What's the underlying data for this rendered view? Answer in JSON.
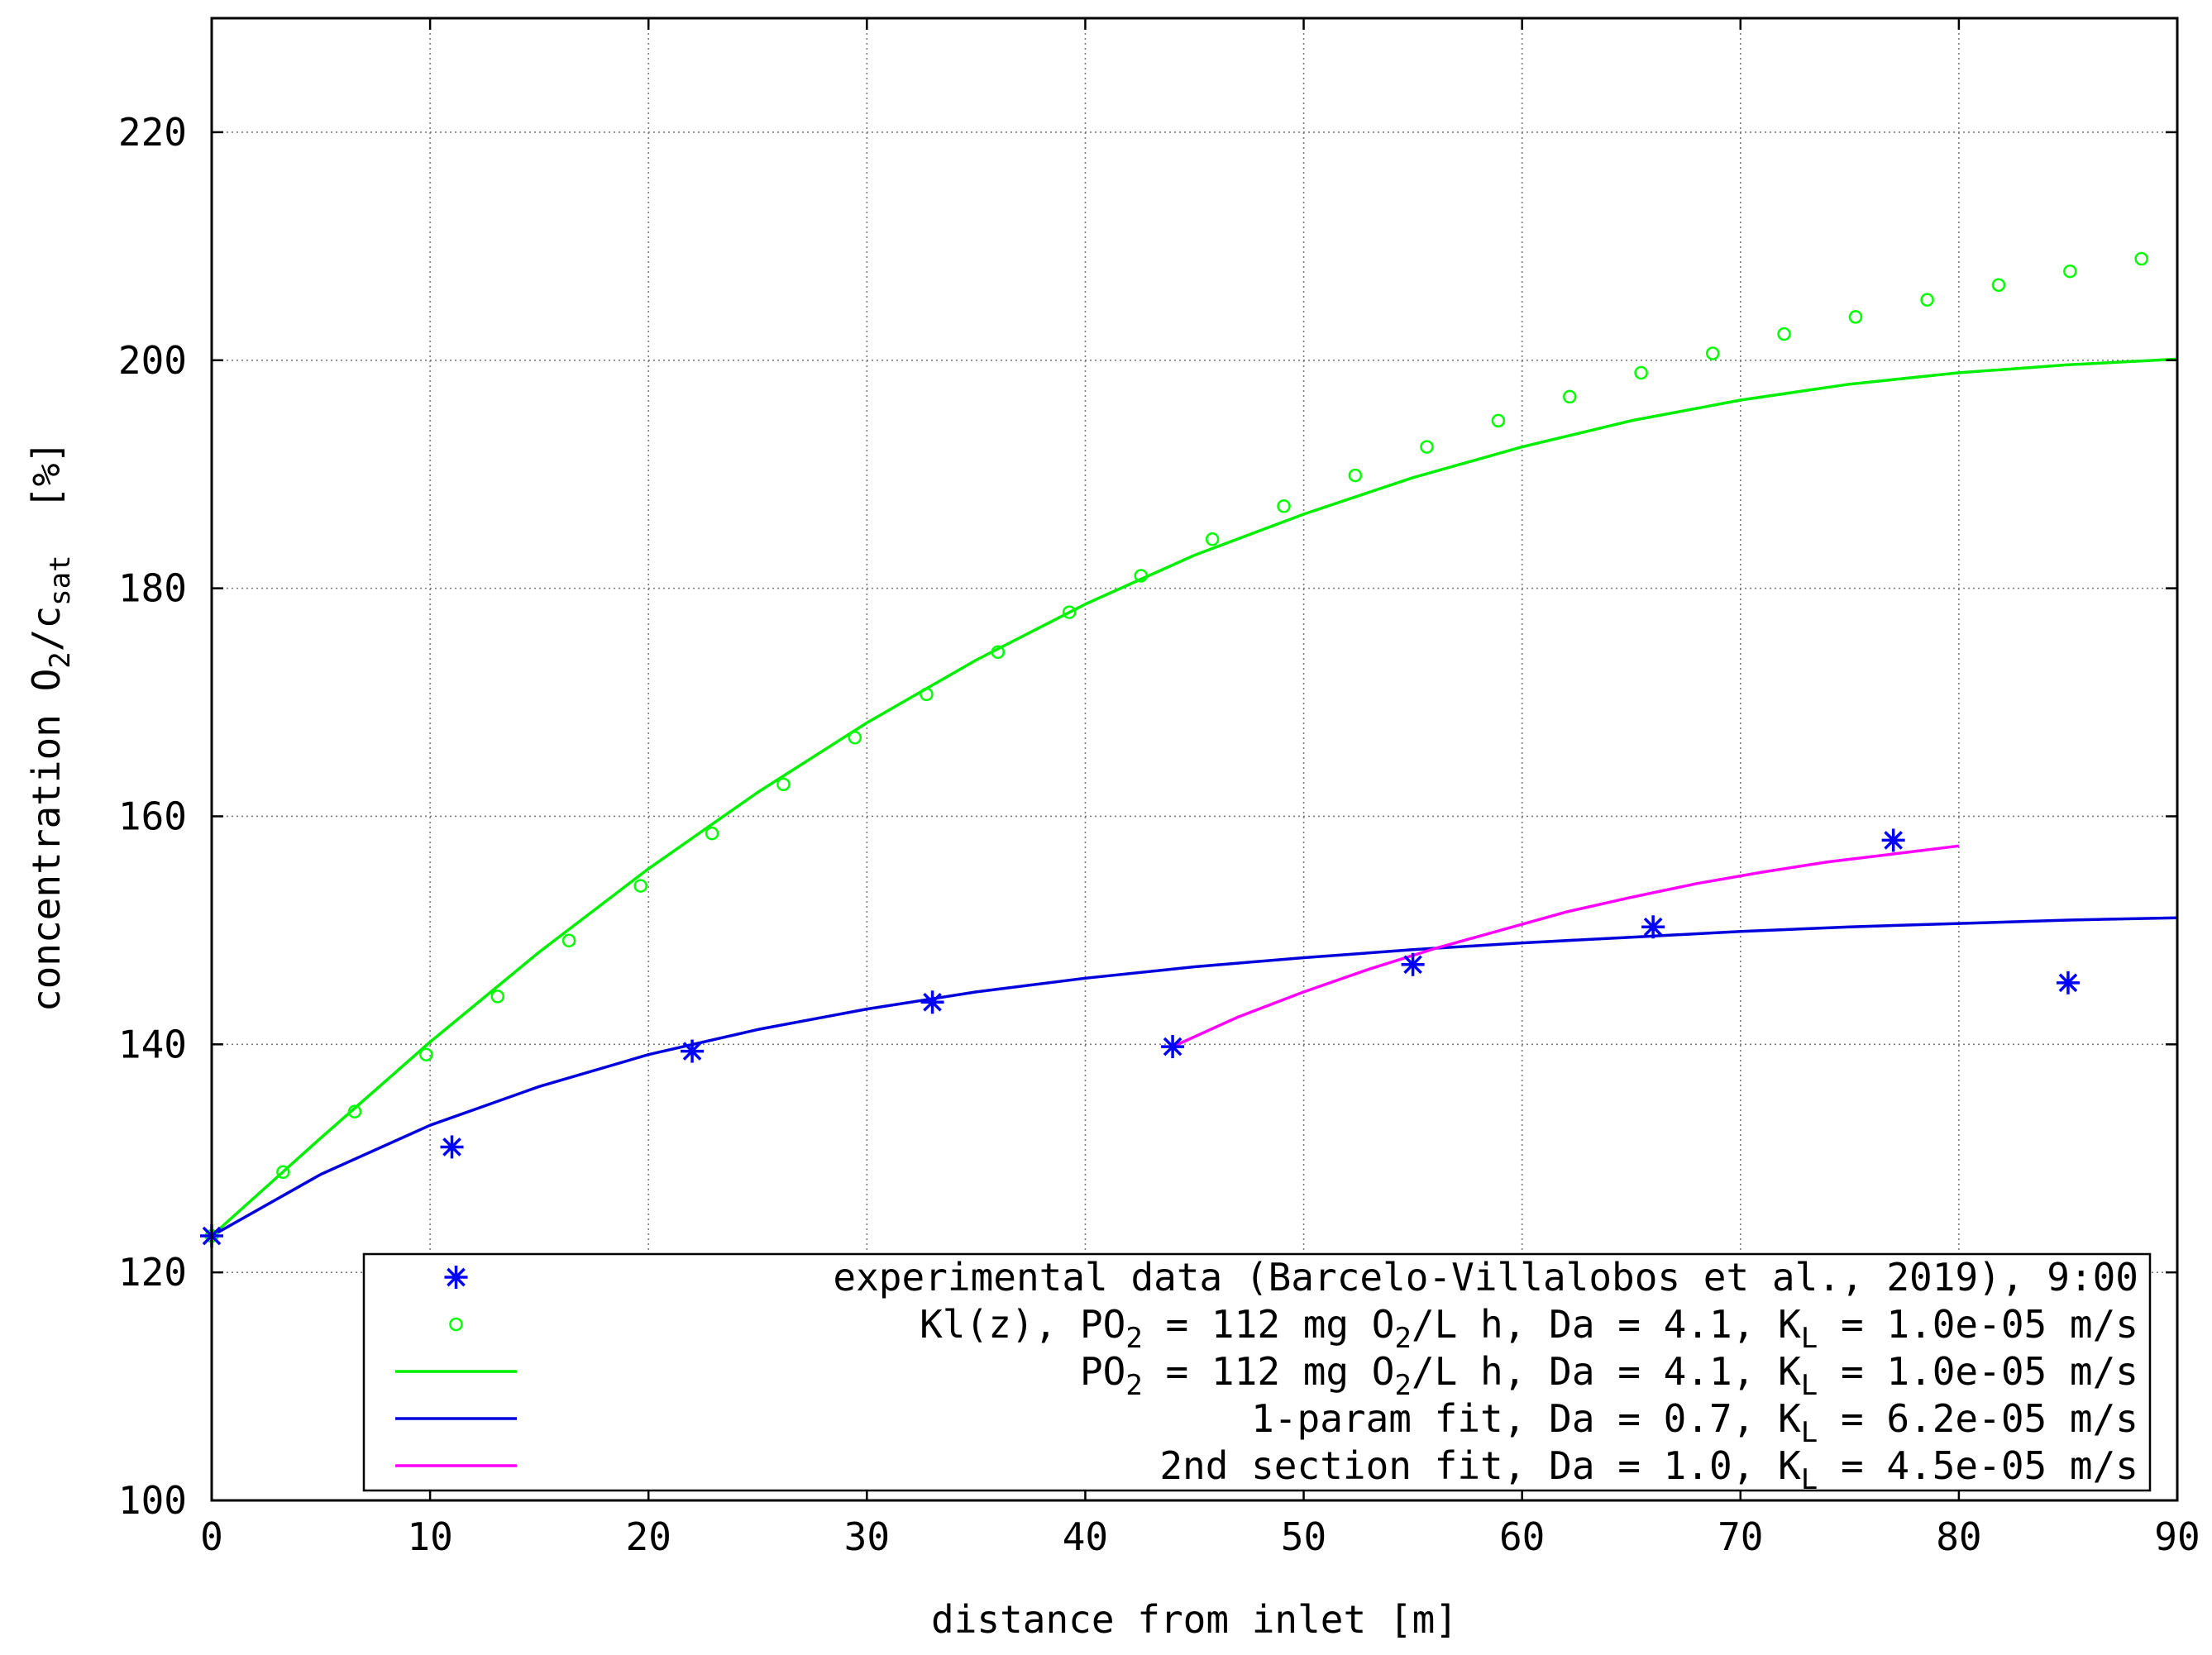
{
  "chart_data": {
    "type": "line",
    "xlabel": "distance from inlet [m]",
    "ylabel": {
      "main": "concentration O",
      "sub1": "2",
      "mid": "/c",
      "sub2": "sat",
      "end": "  [%]"
    },
    "xlim": [
      0,
      90
    ],
    "ylim": [
      100,
      230
    ],
    "xticks": [
      0,
      10,
      20,
      30,
      40,
      50,
      60,
      70,
      80,
      90
    ],
    "yticks": [
      100,
      120,
      140,
      160,
      180,
      200,
      220
    ],
    "grid": true,
    "legend_position": "bottom-right",
    "colors": {
      "experimental": "#0000ff",
      "klz": "#00ff00",
      "po2": "#00ee00",
      "oneparam": "#0000dd",
      "second": "#ff00ff"
    },
    "series": [
      {
        "id": "experimental",
        "legend": {
          "parts": [
            {
              "t": "experimental data (Barcelo-Villalobos et al., 2019), 9:00"
            }
          ]
        },
        "style": "star",
        "x": [
          0,
          11,
          22,
          33,
          44,
          55,
          66,
          77,
          85
        ],
        "y": [
          123.2,
          131.0,
          139.4,
          143.7,
          139.8,
          147.0,
          150.3,
          157.9,
          145.4
        ]
      },
      {
        "id": "klz",
        "legend": {
          "parts": [
            {
              "t": "Kl(z), PO"
            },
            {
              "t": "2",
              "sub": true
            },
            {
              "t": " = 112 mg O"
            },
            {
              "t": "2",
              "sub": true
            },
            {
              "t": "/L h, Da = 4.1, K"
            },
            {
              "t": "L",
              "sub": true
            },
            {
              "t": " = 1.0e-05 m/s"
            }
          ]
        },
        "style": "circle",
        "x": [
          0,
          3.27,
          6.55,
          9.82,
          13.09,
          16.36,
          19.64,
          22.91,
          26.18,
          29.45,
          32.73,
          36.0,
          39.27,
          42.55,
          45.82,
          49.09,
          52.36,
          55.64,
          58.91,
          62.18,
          65.45,
          68.73,
          72.0,
          75.27,
          78.55,
          81.82,
          85.09,
          88.36
        ],
        "y": [
          123.2,
          128.8,
          134.1,
          139.1,
          144.2,
          149.1,
          153.9,
          158.5,
          162.8,
          166.9,
          170.7,
          174.4,
          177.9,
          181.1,
          184.3,
          187.2,
          189.9,
          192.4,
          194.7,
          196.8,
          198.9,
          200.6,
          202.3,
          203.8,
          205.3,
          206.6,
          207.8,
          208.9
        ]
      },
      {
        "id": "po2",
        "legend": {
          "parts": [
            {
              "t": "PO"
            },
            {
              "t": "2",
              "sub": true
            },
            {
              "t": " = 112 mg O"
            },
            {
              "t": "2",
              "sub": true
            },
            {
              "t": "/L h, Da = 4.1, K"
            },
            {
              "t": "L",
              "sub": true
            },
            {
              "t": " = 1.0e-05 m/s"
            }
          ]
        },
        "style": "line",
        "x": [
          0,
          5,
          10,
          15,
          20,
          25,
          30,
          35,
          40,
          45,
          50,
          55,
          60,
          65,
          70,
          75,
          80,
          85,
          90
        ],
        "y": [
          123.2,
          131.8,
          140.2,
          148.1,
          155.4,
          162.1,
          168.2,
          173.7,
          178.6,
          182.9,
          186.5,
          189.7,
          192.4,
          194.7,
          196.5,
          197.9,
          198.9,
          199.6,
          200.1
        ]
      },
      {
        "id": "oneparam",
        "legend": {
          "parts": [
            {
              "t": "1-param fit, Da = 0.7, K"
            },
            {
              "t": "L",
              "sub": true
            },
            {
              "t": " = 6.2e-05 m/s"
            }
          ]
        },
        "style": "line",
        "x": [
          0,
          5,
          10,
          15,
          20,
          25,
          30,
          35,
          40,
          45,
          50,
          55,
          60,
          65,
          70,
          75,
          80,
          85,
          90
        ],
        "y": [
          123.2,
          128.6,
          132.9,
          136.3,
          139.1,
          141.3,
          143.1,
          144.6,
          145.8,
          146.8,
          147.6,
          148.3,
          148.9,
          149.4,
          149.9,
          150.3,
          150.6,
          150.9,
          151.1
        ]
      },
      {
        "id": "second",
        "legend": {
          "parts": [
            {
              "t": "2nd section fit, Da = 1.0, K"
            },
            {
              "t": "L",
              "sub": true
            },
            {
              "t": " = 4.5e-05 m/s"
            }
          ]
        },
        "style": "line",
        "x": [
          44,
          47,
          50,
          53,
          56,
          59,
          62,
          65,
          68,
          71,
          74,
          77,
          80
        ],
        "y": [
          139.8,
          142.4,
          144.6,
          146.6,
          148.4,
          150.0,
          151.6,
          152.9,
          154.1,
          155.1,
          156.0,
          156.7,
          157.4
        ]
      }
    ]
  }
}
